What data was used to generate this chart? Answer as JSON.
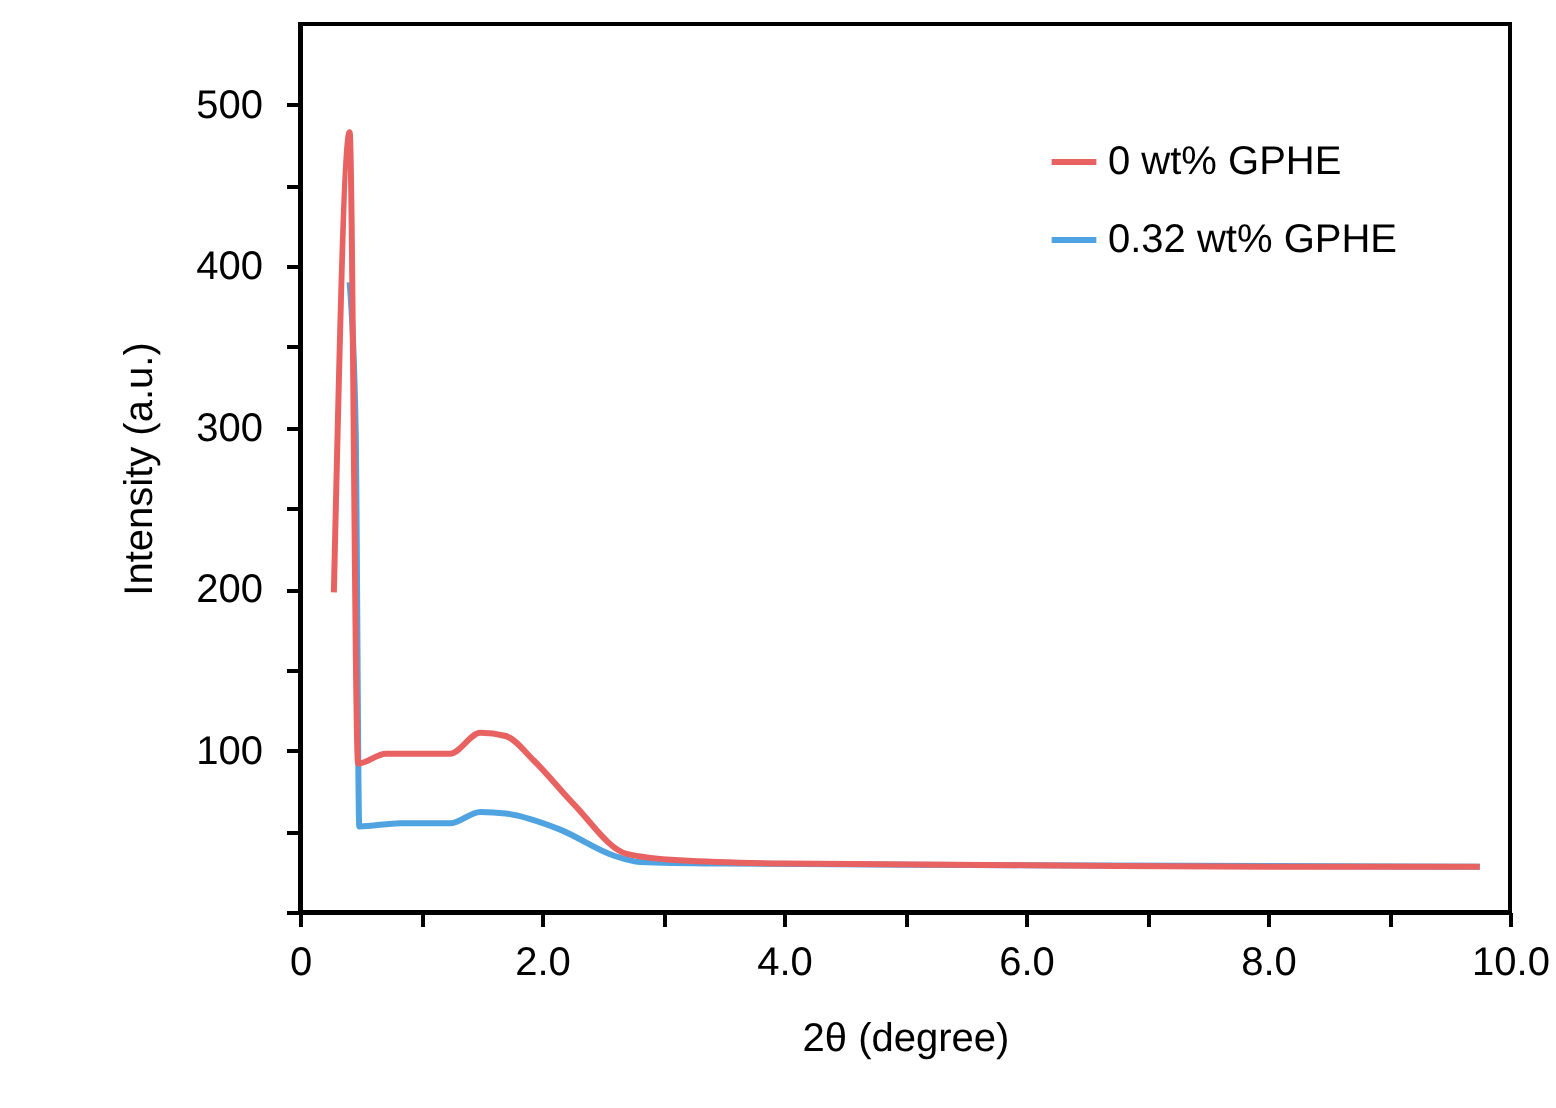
{
  "chart_data": {
    "type": "line",
    "xlabel": "2θ (degree)",
    "ylabel": "Intensity (a.u.)",
    "xlim": [
      0,
      10
    ],
    "xticks": [
      0,
      {
        "value": 1,
        "label": null
      },
      {
        "value": 2,
        "label": "2.0"
      },
      {
        "value": 3,
        "label": null
      },
      {
        "value": 4,
        "label": "4.0"
      },
      {
        "value": 5,
        "label": null
      },
      {
        "value": 6,
        "label": "6.0"
      },
      {
        "value": 7,
        "label": null
      },
      {
        "value": 8,
        "label": "8.0"
      },
      {
        "value": 9,
        "label": null
      },
      {
        "value": 10,
        "label": "10.0"
      }
    ],
    "ylim": [
      0,
      550
    ],
    "yticks": [
      {
        "value": 0,
        "label": null
      },
      {
        "value": 50,
        "label": null
      },
      100,
      {
        "value": 150,
        "label": null
      },
      200,
      {
        "value": 250,
        "label": null
      },
      300,
      {
        "value": 350,
        "label": null
      },
      400,
      {
        "value": 450,
        "label": null
      },
      500
    ],
    "legend": "top right",
    "grid": false,
    "marker": "none",
    "line_style": "solid",
    "series": [
      {
        "name": "0 wt% GPHE",
        "color": "#e86262",
        "x": [
          0.28,
          0.41,
          0.48,
          0.71,
          1.24,
          1.49,
          1.7,
          1.93,
          2.26,
          2.7,
          3.14,
          4.0,
          6.0,
          8.0,
          9.75
        ],
        "values": [
          198,
          483,
          92,
          98,
          98,
          111,
          109,
          94,
          67,
          36,
          32,
          30,
          29,
          28,
          28
        ]
      },
      {
        "name": "0.32 wt% GPHE",
        "color": "#4fa3e0",
        "x": [
          0.41,
          0.46,
          0.49,
          0.83,
          1.24,
          1.49,
          1.7,
          2.15,
          2.59,
          2.81,
          3.5,
          6.0,
          9.75
        ],
        "values": [
          390,
          300,
          53,
          55,
          55,
          62,
          61,
          51,
          35,
          31,
          30,
          29,
          28
        ]
      }
    ]
  }
}
